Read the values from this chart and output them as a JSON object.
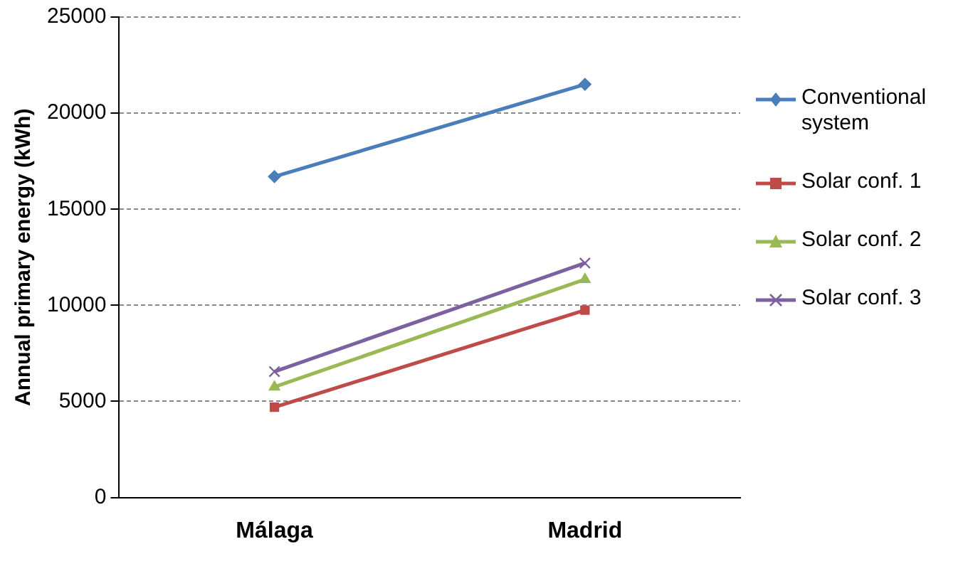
{
  "chart_data": {
    "type": "line",
    "ylabel": "Annual primary energy (kWh)",
    "categories": [
      "Málaga",
      "Madrid"
    ],
    "ylim": [
      0,
      25000
    ],
    "yticks": [
      0,
      5000,
      10000,
      15000,
      20000,
      25000
    ],
    "grid": "y",
    "legend": "right",
    "line_style": "solid",
    "series": [
      {
        "name": "Conventional system",
        "color": "#4a7ebb",
        "marker": "diamond",
        "values": [
          16700,
          21500
        ]
      },
      {
        "name": "Solar conf. 1",
        "color": "#be4b48",
        "marker": "square",
        "values": [
          4700,
          9750
        ]
      },
      {
        "name": "Solar conf. 2",
        "color": "#98b954",
        "marker": "triangle",
        "values": [
          5750,
          11350
        ]
      },
      {
        "name": "Solar conf. 3",
        "color": "#7d60a0",
        "marker": "cross",
        "values": [
          6550,
          12200
        ]
      }
    ]
  }
}
